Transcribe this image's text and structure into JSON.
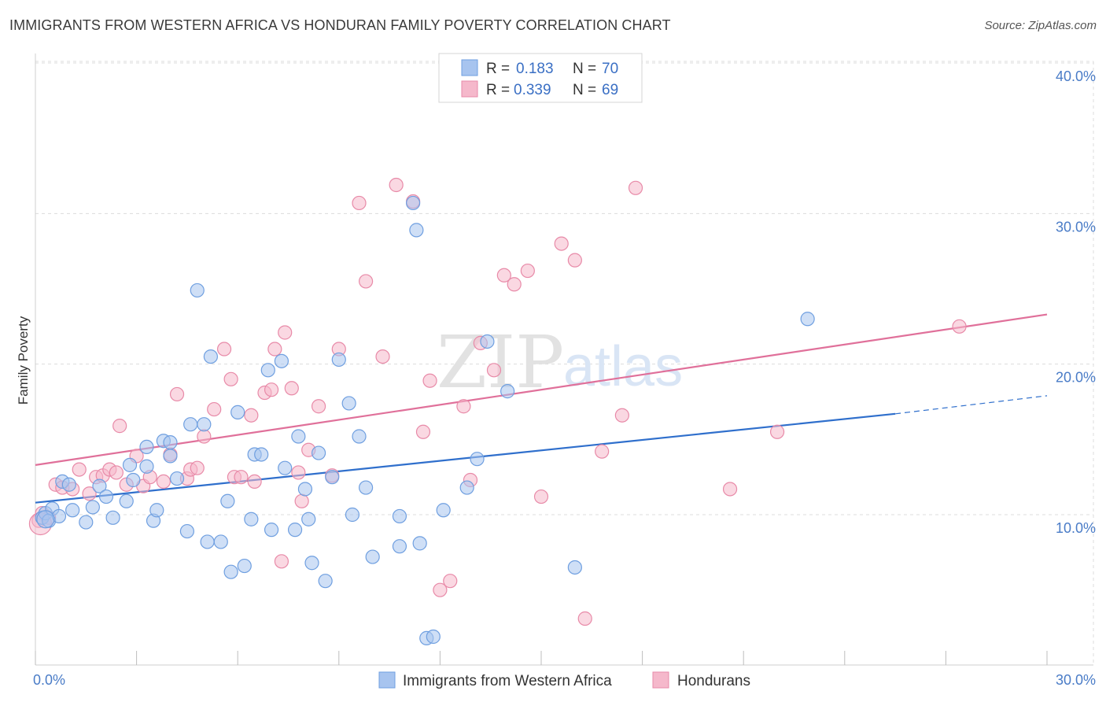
{
  "header": {
    "title": "IMMIGRANTS FROM WESTERN AFRICA VS HONDURAN FAMILY POVERTY CORRELATION CHART",
    "source": "Source: ZipAtlas.com"
  },
  "watermark": {
    "zip": "ZIP",
    "atlas": "atlas"
  },
  "legend": {
    "rows": [
      {
        "r_label": "R =",
        "r_value": "0.183",
        "n_label": "N =",
        "n_value": "70",
        "color": "#a7c4ef"
      },
      {
        "r_label": "R =",
        "r_value": "0.339",
        "n_label": "N =",
        "n_value": "69",
        "color": "#f5b8cb"
      }
    ]
  },
  "bottom_legend": {
    "items": [
      {
        "label": "Immigrants from Western Africa",
        "color": "#a7c4ef"
      },
      {
        "label": "Hondurans",
        "color": "#f5b8cb"
      }
    ]
  },
  "colors": {
    "blue_fill": "#a7c4ef",
    "blue_stroke": "#6f9fe0",
    "blue_line": "#2f6fcc",
    "pink_fill": "#f5b8cb",
    "pink_stroke": "#e88aa8",
    "pink_line": "#e0709a",
    "grid": "#dcdcdc",
    "tick_label": "#4a7cc7"
  },
  "chart_data": {
    "type": "scatter",
    "title": "IMMIGRANTS FROM WESTERN AFRICA VS HONDURAN FAMILY POVERTY CORRELATION CHART",
    "xlabel": "",
    "ylabel": "Family Poverty",
    "xlim": [
      0,
      30
    ],
    "ylim": [
      0,
      40
    ],
    "x_tick_labels": [
      "0.0%",
      "30.0%"
    ],
    "y_ticks": [
      10,
      20,
      30,
      40
    ],
    "y_tick_labels": [
      "10.0%",
      "20.0%",
      "30.0%",
      "40.0%"
    ],
    "grid": true,
    "legend_position": "top-center",
    "series": [
      {
        "name": "Immigrants from Western Africa",
        "r": 0.183,
        "n": 70,
        "trend": {
          "x0": 0,
          "y0": 10.8,
          "x1": 25.5,
          "y1": 16.7,
          "dashed_to_x": 30,
          "dashed_to_y": 17.9
        },
        "points": [
          [
            0.2,
            9.8
          ],
          [
            0.3,
            10.1
          ],
          [
            0.4,
            9.6
          ],
          [
            0.5,
            10.4
          ],
          [
            0.7,
            9.9
          ],
          [
            0.8,
            12.2
          ],
          [
            1.1,
            10.3
          ],
          [
            1.5,
            9.5
          ],
          [
            1.7,
            10.5
          ],
          [
            1.9,
            11.9
          ],
          [
            2.1,
            11.2
          ],
          [
            2.3,
            9.8
          ],
          [
            2.7,
            10.9
          ],
          [
            2.8,
            13.3
          ],
          [
            2.9,
            12.3
          ],
          [
            3.3,
            14.5
          ],
          [
            3.3,
            13.2
          ],
          [
            3.5,
            9.6
          ],
          [
            3.6,
            10.3
          ],
          [
            3.8,
            14.9
          ],
          [
            4.0,
            14.8
          ],
          [
            4.0,
            13.9
          ],
          [
            4.2,
            12.4
          ],
          [
            4.5,
            8.9
          ],
          [
            4.6,
            16.0
          ],
          [
            4.8,
            24.9
          ],
          [
            5.0,
            16.0
          ],
          [
            5.1,
            8.2
          ],
          [
            5.2,
            20.5
          ],
          [
            5.5,
            8.2
          ],
          [
            5.7,
            10.9
          ],
          [
            5.8,
            6.2
          ],
          [
            6.0,
            16.8
          ],
          [
            6.2,
            6.6
          ],
          [
            6.4,
            9.7
          ],
          [
            6.5,
            14.0
          ],
          [
            6.7,
            14.0
          ],
          [
            6.9,
            19.6
          ],
          [
            7.0,
            9.0
          ],
          [
            7.3,
            20.2
          ],
          [
            7.4,
            13.1
          ],
          [
            7.7,
            9.0
          ],
          [
            7.8,
            15.2
          ],
          [
            8.0,
            11.7
          ],
          [
            8.1,
            9.7
          ],
          [
            8.2,
            6.8
          ],
          [
            8.4,
            14.1
          ],
          [
            8.6,
            5.6
          ],
          [
            8.8,
            12.5
          ],
          [
            9.0,
            20.3
          ],
          [
            9.3,
            17.4
          ],
          [
            9.4,
            10.0
          ],
          [
            9.6,
            15.2
          ],
          [
            9.8,
            11.8
          ],
          [
            10.0,
            7.2
          ],
          [
            10.8,
            7.9
          ],
          [
            10.8,
            9.9
          ],
          [
            11.2,
            30.7
          ],
          [
            11.3,
            28.9
          ],
          [
            11.4,
            8.1
          ],
          [
            11.6,
            1.8
          ],
          [
            11.8,
            1.9
          ],
          [
            12.1,
            10.3
          ],
          [
            12.8,
            11.8
          ],
          [
            13.1,
            13.7
          ],
          [
            13.4,
            21.5
          ],
          [
            14.0,
            18.2
          ],
          [
            16.0,
            6.5
          ],
          [
            22.9,
            23.0
          ],
          [
            1.0,
            12.0
          ]
        ]
      },
      {
        "name": "Hondurans",
        "r": 0.339,
        "n": 69,
        "trend": {
          "x0": 0,
          "y0": 13.3,
          "x1": 30,
          "y1": 23.3
        },
        "points": [
          [
            0.1,
            9.6
          ],
          [
            0.2,
            10.1
          ],
          [
            0.4,
            9.8
          ],
          [
            0.6,
            12.0
          ],
          [
            0.8,
            11.8
          ],
          [
            1.1,
            11.7
          ],
          [
            1.3,
            13.0
          ],
          [
            1.6,
            11.4
          ],
          [
            1.8,
            12.5
          ],
          [
            2.0,
            12.6
          ],
          [
            2.2,
            13.0
          ],
          [
            2.4,
            12.8
          ],
          [
            2.5,
            15.9
          ],
          [
            2.7,
            12.0
          ],
          [
            3.0,
            13.9
          ],
          [
            3.2,
            11.9
          ],
          [
            3.4,
            12.5
          ],
          [
            3.8,
            12.2
          ],
          [
            4.0,
            14.0
          ],
          [
            4.2,
            18.0
          ],
          [
            4.5,
            12.4
          ],
          [
            4.6,
            13.0
          ],
          [
            4.8,
            13.1
          ],
          [
            5.0,
            15.2
          ],
          [
            5.3,
            17.0
          ],
          [
            5.6,
            21.0
          ],
          [
            5.8,
            19.0
          ],
          [
            5.9,
            12.5
          ],
          [
            6.1,
            12.5
          ],
          [
            6.4,
            16.6
          ],
          [
            6.5,
            12.2
          ],
          [
            6.8,
            18.1
          ],
          [
            7.0,
            18.3
          ],
          [
            7.1,
            21.0
          ],
          [
            7.3,
            6.9
          ],
          [
            7.4,
            22.1
          ],
          [
            7.6,
            18.4
          ],
          [
            7.8,
            12.8
          ],
          [
            7.9,
            10.9
          ],
          [
            8.1,
            14.3
          ],
          [
            8.4,
            17.2
          ],
          [
            8.8,
            12.6
          ],
          [
            9.0,
            21.0
          ],
          [
            9.6,
            30.7
          ],
          [
            9.8,
            25.5
          ],
          [
            10.3,
            20.5
          ],
          [
            10.7,
            31.9
          ],
          [
            11.2,
            30.8
          ],
          [
            11.5,
            15.5
          ],
          [
            11.7,
            18.9
          ],
          [
            12.0,
            5.0
          ],
          [
            12.3,
            5.6
          ],
          [
            12.7,
            17.2
          ],
          [
            12.9,
            12.3
          ],
          [
            13.2,
            21.4
          ],
          [
            13.6,
            19.6
          ],
          [
            13.9,
            25.9
          ],
          [
            14.2,
            25.3
          ],
          [
            14.6,
            26.2
          ],
          [
            15.0,
            11.2
          ],
          [
            15.6,
            28.0
          ],
          [
            16.0,
            26.9
          ],
          [
            16.3,
            3.1
          ],
          [
            16.8,
            14.2
          ],
          [
            17.4,
            16.6
          ],
          [
            17.8,
            31.7
          ],
          [
            20.6,
            11.7
          ],
          [
            22.0,
            15.5
          ],
          [
            27.4,
            22.5
          ]
        ]
      }
    ]
  }
}
